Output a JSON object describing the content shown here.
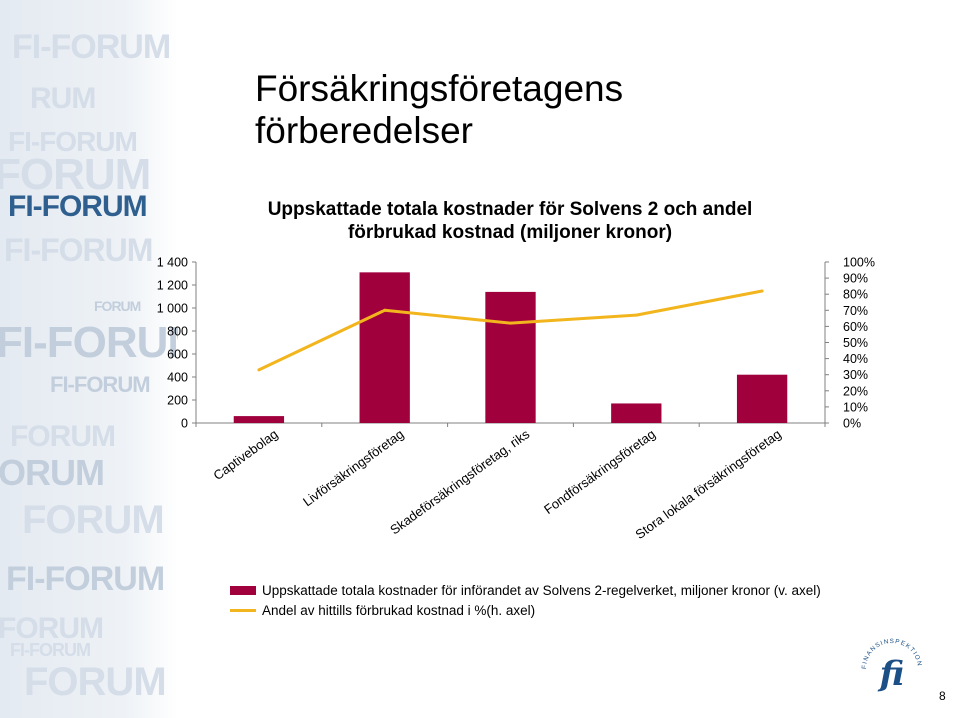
{
  "page": {
    "title_line1": "Försäkringsföretagens",
    "title_line2": "förberedelser",
    "page_number": "8"
  },
  "watermark": {
    "words": [
      "FI-FORUM",
      "RUM",
      "FI-FORUM",
      "FORUM",
      "FI-FORUM",
      "FI-FORUM",
      "FORUM",
      "FI-FORUM",
      "FI-FORUM",
      "FORUM",
      "ORUM",
      "FORUM",
      "FI-FORUM",
      "FORUM",
      "FI-FORUM",
      "FORUM"
    ]
  },
  "logo": {
    "name": "Finansinspektionen",
    "arc_text": "FINANSINSPEKTIONEN",
    "mark": "fi"
  },
  "chart_data": {
    "type": "bar",
    "title_line1": "Uppskattade totala kostnader för Solvens 2 och andel",
    "title_line2": "förbrukad kostnad (miljoner kronor)",
    "categories": [
      "Captivebolag",
      "Livförsäkringsföretag",
      "Skadeförsäkringsföretag, riks",
      "Fondförsäkringsföretag",
      "Stora lokala försäkringsföretag"
    ],
    "series": [
      {
        "name": "Uppskattade totala kostnader för införandet av Solvens 2-regelverket, miljoner kronor (v. axel)",
        "type": "bar",
        "axis": "left",
        "color": "#a0003c",
        "values": [
          60,
          1310,
          1140,
          170,
          420
        ]
      },
      {
        "name": "Andel av hittills förbrukad kostnad i %(h. axel)",
        "type": "line",
        "axis": "right",
        "color": "#f2b51d",
        "values": [
          33,
          70,
          62,
          67,
          82
        ]
      }
    ],
    "left_axis": {
      "ylim": [
        0,
        1400
      ],
      "ticks": [
        0,
        200,
        400,
        600,
        800,
        1000,
        1200,
        1400
      ],
      "tick_labels": [
        "0",
        "200",
        "400",
        "600",
        "800",
        "1 000",
        "1 200",
        "1 400"
      ]
    },
    "right_axis": {
      "ylim": [
        0,
        100
      ],
      "ticks": [
        0,
        10,
        20,
        30,
        40,
        50,
        60,
        70,
        80,
        90,
        100
      ],
      "tick_labels": [
        "0%",
        "10%",
        "20%",
        "30%",
        "40%",
        "50%",
        "60%",
        "70%",
        "80%",
        "90%",
        "100%"
      ]
    },
    "grid": false,
    "legend_position": "bottom"
  }
}
